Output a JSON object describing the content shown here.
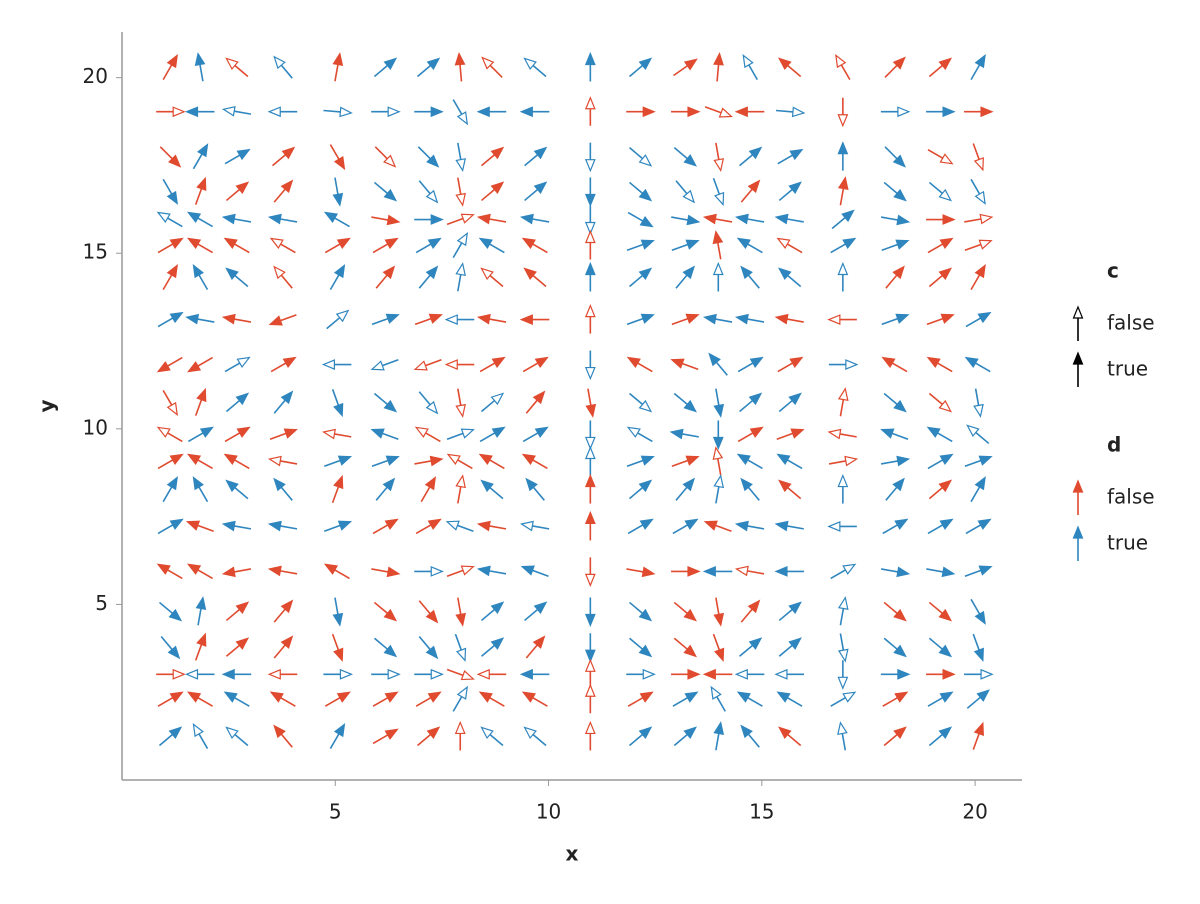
{
  "chart_data": {
    "type": "quiver",
    "x_label": "x",
    "y_label": "y",
    "xlim": [
      0,
      21.1
    ],
    "ylim": [
      0,
      21.3
    ],
    "xticks": [
      5,
      10,
      15,
      20
    ],
    "yticks": [
      5,
      10,
      15,
      20
    ],
    "x": [
      1.13,
      1.84,
      2.7,
      3.78,
      5.05,
      6.17,
      7.18,
      7.93,
      8.68,
      9.69,
      10.98,
      12.15,
      13.2,
      13.98,
      14.73,
      15.66,
      16.9,
      18.12,
      19.18,
      20.07
    ],
    "y": [
      20.29,
      19.03,
      17.75,
      16.76,
      15.96,
      15.22,
      14.31,
      13.11,
      11.83,
      10.75,
      9.84,
      9.07,
      8.27,
      7.22,
      5.94,
      4.8,
      3.78,
      3.01,
      2.3,
      1.24
    ],
    "angle": [
      [
        60,
        100,
        140,
        130,
        80,
        40,
        40,
        95,
        135,
        140,
        90,
        40,
        35,
        85,
        120,
        140,
        120,
        45,
        40,
        60
      ],
      [
        0,
        180,
        170,
        180,
        355,
        0,
        0,
        300,
        180,
        180,
        90,
        0,
        0,
        340,
        180,
        355,
        270,
        0,
        0,
        0
      ],
      [
        315,
        60,
        30,
        40,
        300,
        315,
        315,
        280,
        40,
        40,
        270,
        320,
        320,
        280,
        40,
        30,
        90,
        315,
        330,
        290
      ],
      [
        300,
        70,
        40,
        50,
        280,
        320,
        310,
        280,
        40,
        40,
        270,
        320,
        310,
        290,
        50,
        40,
        80,
        320,
        320,
        300
      ],
      [
        150,
        150,
        170,
        170,
        150,
        350,
        0,
        20,
        170,
        170,
        270,
        330,
        350,
        170,
        170,
        170,
        40,
        350,
        0,
        10
      ],
      [
        30,
        150,
        150,
        150,
        30,
        30,
        30,
        60,
        150,
        150,
        90,
        20,
        20,
        100,
        150,
        150,
        30,
        20,
        30,
        20
      ],
      [
        60,
        120,
        140,
        130,
        60,
        50,
        50,
        80,
        140,
        140,
        90,
        40,
        50,
        90,
        130,
        140,
        90,
        50,
        40,
        60
      ],
      [
        30,
        170,
        170,
        200,
        40,
        20,
        20,
        180,
        170,
        180,
        90,
        20,
        20,
        170,
        170,
        170,
        180,
        20,
        20,
        30
      ],
      [
        210,
        210,
        30,
        30,
        180,
        200,
        200,
        180,
        30,
        30,
        270,
        150,
        160,
        130,
        30,
        30,
        0,
        150,
        150,
        150
      ],
      [
        300,
        70,
        40,
        50,
        290,
        320,
        310,
        280,
        40,
        50,
        280,
        320,
        320,
        280,
        40,
        40,
        80,
        320,
        320,
        280
      ],
      [
        150,
        30,
        30,
        20,
        170,
        160,
        150,
        20,
        30,
        30,
        270,
        150,
        170,
        270,
        30,
        20,
        170,
        160,
        150,
        140
      ],
      [
        30,
        150,
        150,
        170,
        20,
        20,
        10,
        150,
        150,
        150,
        90,
        20,
        20,
        100,
        150,
        150,
        10,
        10,
        30,
        20
      ],
      [
        60,
        120,
        140,
        130,
        70,
        50,
        60,
        80,
        140,
        130,
        90,
        40,
        50,
        80,
        130,
        140,
        90,
        50,
        40,
        60
      ],
      [
        30,
        160,
        170,
        170,
        20,
        30,
        30,
        160,
        170,
        170,
        90,
        30,
        30,
        160,
        170,
        170,
        180,
        30,
        30,
        30
      ],
      [
        150,
        150,
        190,
        170,
        150,
        350,
        0,
        20,
        170,
        160,
        270,
        350,
        0,
        180,
        170,
        180,
        30,
        350,
        350,
        20
      ],
      [
        320,
        80,
        40,
        50,
        280,
        320,
        310,
        280,
        40,
        40,
        270,
        320,
        320,
        280,
        50,
        40,
        80,
        320,
        320,
        300
      ],
      [
        310,
        70,
        40,
        50,
        290,
        320,
        310,
        290,
        40,
        50,
        270,
        320,
        320,
        290,
        40,
        40,
        280,
        320,
        320,
        290
      ],
      [
        0,
        180,
        180,
        180,
        0,
        0,
        0,
        340,
        180,
        180,
        90,
        0,
        0,
        180,
        180,
        180,
        270,
        0,
        0,
        0
      ],
      [
        30,
        150,
        150,
        150,
        30,
        30,
        30,
        60,
        150,
        150,
        90,
        30,
        30,
        120,
        150,
        150,
        30,
        30,
        30,
        40
      ],
      [
        40,
        120,
        140,
        130,
        60,
        30,
        40,
        90,
        140,
        140,
        90,
        40,
        40,
        80,
        130,
        140,
        100,
        40,
        40,
        70
      ]
    ],
    "c": [
      [
        1,
        1,
        0,
        0,
        1,
        1,
        1,
        1,
        0,
        0,
        1,
        1,
        1,
        1,
        0,
        1,
        0,
        1,
        1,
        1
      ],
      [
        0,
        1,
        0,
        0,
        0,
        0,
        1,
        0,
        1,
        1,
        0,
        1,
        1,
        0,
        1,
        0,
        0,
        0,
        1,
        1
      ],
      [
        1,
        1,
        1,
        1,
        1,
        0,
        1,
        0,
        1,
        1,
        0,
        0,
        1,
        0,
        1,
        1,
        1,
        1,
        0,
        0
      ],
      [
        1,
        1,
        1,
        1,
        1,
        1,
        0,
        0,
        1,
        1,
        1,
        1,
        0,
        0,
        1,
        1,
        1,
        1,
        0,
        0
      ],
      [
        0,
        1,
        1,
        1,
        1,
        1,
        1,
        0,
        1,
        1,
        0,
        1,
        1,
        1,
        1,
        1,
        1,
        1,
        1,
        0
      ],
      [
        1,
        1,
        1,
        0,
        1,
        1,
        1,
        0,
        1,
        1,
        0,
        1,
        1,
        1,
        1,
        0,
        1,
        1,
        1,
        0
      ],
      [
        1,
        1,
        1,
        0,
        1,
        1,
        1,
        0,
        0,
        1,
        1,
        1,
        1,
        0,
        1,
        1,
        0,
        1,
        1,
        1
      ],
      [
        1,
        1,
        1,
        1,
        0,
        1,
        1,
        0,
        1,
        1,
        0,
        1,
        1,
        1,
        1,
        1,
        0,
        1,
        1,
        1
      ],
      [
        1,
        1,
        0,
        1,
        0,
        0,
        0,
        0,
        1,
        1,
        0,
        1,
        1,
        1,
        1,
        1,
        0,
        1,
        1,
        1
      ],
      [
        0,
        1,
        1,
        1,
        1,
        1,
        0,
        0,
        0,
        1,
        1,
        0,
        1,
        1,
        1,
        1,
        0,
        1,
        0,
        0
      ],
      [
        0,
        1,
        1,
        1,
        0,
        1,
        0,
        0,
        1,
        1,
        0,
        0,
        1,
        1,
        1,
        1,
        0,
        1,
        1,
        0
      ],
      [
        1,
        1,
        1,
        0,
        1,
        1,
        1,
        0,
        1,
        1,
        0,
        1,
        1,
        0,
        1,
        1,
        0,
        1,
        1,
        1
      ],
      [
        1,
        1,
        1,
        1,
        1,
        1,
        1,
        0,
        1,
        1,
        1,
        1,
        1,
        0,
        1,
        1,
        0,
        1,
        1,
        1
      ],
      [
        1,
        1,
        1,
        1,
        1,
        1,
        1,
        0,
        1,
        0,
        1,
        1,
        1,
        1,
        1,
        1,
        0,
        1,
        1,
        1
      ],
      [
        1,
        1,
        1,
        1,
        1,
        1,
        0,
        0,
        1,
        1,
        0,
        1,
        1,
        1,
        0,
        1,
        0,
        1,
        1,
        1
      ],
      [
        1,
        1,
        1,
        1,
        1,
        1,
        1,
        1,
        1,
        1,
        1,
        1,
        1,
        1,
        1,
        1,
        0,
        1,
        1,
        1
      ],
      [
        1,
        1,
        1,
        1,
        1,
        1,
        1,
        0,
        1,
        1,
        1,
        1,
        1,
        1,
        1,
        1,
        0,
        1,
        1,
        1
      ],
      [
        0,
        0,
        1,
        0,
        0,
        0,
        0,
        0,
        0,
        1,
        0,
        0,
        1,
        1,
        0,
        0,
        0,
        1,
        1,
        0
      ],
      [
        1,
        1,
        1,
        1,
        1,
        1,
        1,
        0,
        1,
        1,
        0,
        1,
        1,
        0,
        1,
        1,
        0,
        1,
        1,
        1
      ],
      [
        1,
        0,
        0,
        1,
        1,
        1,
        1,
        0,
        0,
        0,
        0,
        1,
        1,
        1,
        1,
        1,
        0,
        1,
        1,
        1
      ]
    ],
    "d": [
      [
        0,
        1,
        0,
        1,
        0,
        1,
        1,
        0,
        0,
        1,
        1,
        1,
        0,
        0,
        1,
        0,
        0,
        0,
        0,
        1
      ],
      [
        0,
        1,
        1,
        1,
        1,
        1,
        1,
        1,
        1,
        1,
        0,
        0,
        0,
        0,
        0,
        1,
        0,
        1,
        1,
        0
      ],
      [
        0,
        1,
        1,
        0,
        0,
        0,
        1,
        1,
        0,
        1,
        1,
        1,
        1,
        0,
        1,
        1,
        1,
        1,
        0,
        0
      ],
      [
        1,
        0,
        0,
        0,
        1,
        1,
        1,
        0,
        0,
        1,
        1,
        1,
        1,
        1,
        0,
        1,
        0,
        1,
        1,
        1
      ],
      [
        1,
        1,
        1,
        1,
        1,
        0,
        1,
        0,
        0,
        1,
        1,
        1,
        1,
        0,
        1,
        1,
        1,
        1,
        0,
        0
      ],
      [
        0,
        0,
        0,
        0,
        0,
        0,
        1,
        1,
        1,
        0,
        0,
        1,
        1,
        0,
        1,
        0,
        1,
        1,
        0,
        0
      ],
      [
        0,
        1,
        1,
        0,
        1,
        0,
        1,
        1,
        0,
        0,
        1,
        1,
        1,
        1,
        1,
        1,
        1,
        0,
        0,
        0
      ],
      [
        1,
        1,
        0,
        0,
        1,
        1,
        0,
        1,
        0,
        0,
        0,
        1,
        0,
        1,
        1,
        0,
        0,
        1,
        0,
        1
      ],
      [
        0,
        0,
        1,
        0,
        1,
        1,
        0,
        0,
        0,
        0,
        1,
        0,
        0,
        1,
        1,
        0,
        1,
        0,
        0,
        1
      ],
      [
        0,
        0,
        1,
        1,
        1,
        1,
        1,
        0,
        1,
        0,
        0,
        1,
        1,
        1,
        1,
        1,
        0,
        1,
        0,
        1
      ],
      [
        0,
        1,
        0,
        0,
        0,
        1,
        0,
        1,
        1,
        1,
        1,
        1,
        1,
        1,
        0,
        0,
        0,
        1,
        1,
        1
      ],
      [
        0,
        0,
        0,
        0,
        1,
        1,
        0,
        0,
        0,
        0,
        1,
        1,
        0,
        0,
        1,
        1,
        0,
        1,
        1,
        1
      ],
      [
        1,
        1,
        1,
        1,
        0,
        1,
        0,
        0,
        1,
        1,
        0,
        1,
        1,
        1,
        1,
        0,
        1,
        1,
        0,
        1
      ],
      [
        1,
        0,
        1,
        1,
        1,
        0,
        0,
        1,
        0,
        1,
        0,
        1,
        1,
        0,
        1,
        1,
        1,
        1,
        1,
        1
      ],
      [
        0,
        0,
        0,
        0,
        0,
        0,
        1,
        0,
        1,
        1,
        0,
        0,
        0,
        1,
        0,
        1,
        1,
        1,
        1,
        1
      ],
      [
        1,
        1,
        0,
        0,
        1,
        0,
        0,
        0,
        1,
        1,
        1,
        1,
        0,
        0,
        0,
        1,
        1,
        0,
        0,
        1
      ],
      [
        1,
        0,
        0,
        0,
        0,
        1,
        1,
        1,
        1,
        0,
        1,
        1,
        0,
        0,
        1,
        1,
        1,
        1,
        1,
        1
      ],
      [
        0,
        1,
        1,
        0,
        1,
        1,
        1,
        0,
        0,
        1,
        0,
        1,
        0,
        0,
        1,
        1,
        1,
        1,
        0,
        1
      ],
      [
        0,
        0,
        1,
        0,
        0,
        0,
        0,
        1,
        0,
        0,
        0,
        0,
        1,
        1,
        1,
        1,
        1,
        0,
        1,
        1
      ],
      [
        1,
        1,
        1,
        0,
        1,
        0,
        0,
        0,
        1,
        1,
        0,
        1,
        1,
        1,
        1,
        0,
        1,
        0,
        1,
        0
      ]
    ],
    "legends": [
      {
        "title": "c",
        "labels": [
          "false",
          "true"
        ],
        "heads": [
          "open",
          "filled"
        ],
        "color": "#000000"
      },
      {
        "title": "d",
        "labels": [
          "false",
          "true"
        ],
        "colors": [
          "#e04a2f",
          "#2f86bf"
        ]
      }
    ]
  }
}
